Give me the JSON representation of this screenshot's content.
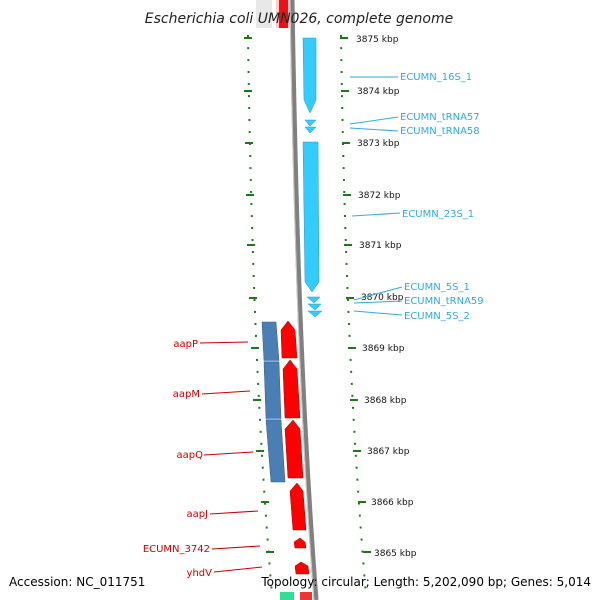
{
  "title": "Escherichia coli UMN026, complete genome",
  "accession": "Accession: NC_011751",
  "topology": "Topology: circular; Length: 5,202,090 bp; Genes: 5,014",
  "colors": {
    "forward_gene": "#ff0000",
    "reverse_gene": "#4a7fb5",
    "rna_gene": "#33ccff",
    "rna_label": "#33aadd",
    "gene_label": "#cc0000",
    "tick": "#1a7a1a",
    "backbone": "#808080"
  },
  "ticks": [
    "3875 kbp",
    "3874 kbp",
    "3873 kbp",
    "3872 kbp",
    "3871 kbp",
    "3870 kbp",
    "3869 kbp",
    "3868 kbp",
    "3867 kbp",
    "3866 kbp",
    "3865 kbp"
  ],
  "rna_labels": [
    "ECUMN_16S_1",
    "ECUMN_tRNA57",
    "ECUMN_tRNA58",
    "ECUMN_23S_1",
    "ECUMN_5S_1",
    "ECUMN_tRNA59",
    "ECUMN_5S_2"
  ],
  "gene_labels": [
    "aapP",
    "aapM",
    "aapQ",
    "aapJ",
    "ECUMN_3742",
    "yhdV"
  ]
}
